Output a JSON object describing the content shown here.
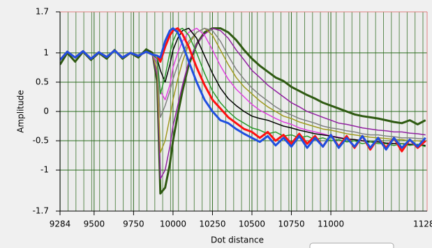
{
  "chart_data": {
    "type": "line",
    "x_label": "Dot distance",
    "y_label": "Amplitude",
    "x_max_label": "1128",
    "xlim": [
      9284,
      11610
    ],
    "xticks": [
      9284,
      9500,
      9750,
      10000,
      10250,
      10500,
      10750,
      11000
    ],
    "ylim": [
      -1.7,
      1.7
    ],
    "yticks": [
      -1.7,
      -1,
      -0.5,
      0,
      0.5,
      1,
      1.7
    ],
    "grid": true,
    "x": [
      9284,
      9330,
      9380,
      9430,
      9480,
      9530,
      9580,
      9630,
      9680,
      9730,
      9780,
      9830,
      9870,
      9900,
      9920,
      9950,
      9980,
      10000,
      10030,
      10060,
      10100,
      10150,
      10200,
      10250,
      10300,
      10350,
      10400,
      10450,
      10500,
      10550,
      10600,
      10650,
      10700,
      10750,
      10800,
      10850,
      10900,
      10950,
      11000,
      11050,
      11100,
      11150,
      11200,
      11250,
      11300,
      11350,
      11400,
      11450,
      11500,
      11550,
      11600
    ],
    "series": [
      {
        "color": "#2f5a12",
        "width": 3,
        "values": [
          0.8,
          1.0,
          0.85,
          1.02,
          0.88,
          1.0,
          0.9,
          1.05,
          0.9,
          1.0,
          0.92,
          1.06,
          1.0,
          0.5,
          -1.4,
          -1.3,
          -0.9,
          -0.5,
          -0.05,
          0.35,
          0.8,
          1.15,
          1.35,
          1.42,
          1.42,
          1.35,
          1.22,
          1.05,
          0.9,
          0.78,
          0.68,
          0.58,
          0.52,
          0.42,
          0.35,
          0.28,
          0.22,
          0.15,
          0.1,
          0.05,
          0.0,
          -0.05,
          -0.08,
          -0.1,
          -0.12,
          -0.15,
          -0.18,
          -0.2,
          -0.15,
          -0.22,
          -0.15
        ]
      },
      {
        "color": "#9020a0",
        "width": 1.5,
        "values": [
          0.88,
          1.02,
          0.92,
          1.03,
          0.9,
          1.01,
          0.93,
          1.04,
          0.92,
          1.0,
          0.95,
          1.02,
          0.97,
          0.6,
          -1.15,
          -1.0,
          -0.6,
          -0.25,
          0.1,
          0.45,
          0.85,
          1.15,
          1.32,
          1.42,
          1.38,
          1.25,
          1.05,
          0.88,
          0.7,
          0.58,
          0.45,
          0.35,
          0.25,
          0.15,
          0.08,
          0.0,
          -0.05,
          -0.1,
          -0.15,
          -0.2,
          -0.22,
          -0.25,
          -0.28,
          -0.3,
          -0.32,
          -0.33,
          -0.35,
          -0.35,
          -0.37,
          -0.38,
          -0.4
        ]
      },
      {
        "color": "#a09a20",
        "width": 1.5,
        "values": [
          0.88,
          1.02,
          0.92,
          1.03,
          0.9,
          1.01,
          0.93,
          1.04,
          0.92,
          1.0,
          0.95,
          1.02,
          0.97,
          0.7,
          -0.7,
          -0.5,
          -0.1,
          0.2,
          0.55,
          0.85,
          1.15,
          1.35,
          1.42,
          1.3,
          1.05,
          0.8,
          0.58,
          0.42,
          0.3,
          0.18,
          0.08,
          0.0,
          -0.08,
          -0.12,
          -0.18,
          -0.22,
          -0.26,
          -0.3,
          -0.32,
          -0.35,
          -0.38,
          -0.4,
          -0.42,
          -0.44,
          -0.45,
          -0.46,
          -0.48,
          -0.48,
          -0.5,
          -0.5,
          -0.52
        ]
      },
      {
        "color": "#808080",
        "width": 1.5,
        "values": [
          0.88,
          1.02,
          0.92,
          1.03,
          0.9,
          1.01,
          0.93,
          1.04,
          0.92,
          1.0,
          0.95,
          1.02,
          0.97,
          0.8,
          -0.1,
          0.1,
          0.35,
          0.55,
          0.8,
          1.0,
          1.2,
          1.35,
          1.42,
          1.38,
          1.2,
          0.95,
          0.72,
          0.55,
          0.4,
          0.28,
          0.18,
          0.08,
          0.0,
          -0.06,
          -0.12,
          -0.16,
          -0.2,
          -0.25,
          -0.28,
          -0.3,
          -0.33,
          -0.35,
          -0.38,
          -0.4,
          -0.4,
          -0.42,
          -0.43,
          -0.45,
          -0.45,
          -0.46,
          -0.47
        ]
      },
      {
        "color": "#e040e0",
        "width": 1.5,
        "values": [
          0.88,
          1.02,
          0.92,
          1.03,
          0.9,
          1.01,
          0.93,
          1.04,
          0.92,
          1.0,
          0.95,
          1.02,
          0.97,
          0.85,
          0.35,
          0.2,
          0.45,
          0.75,
          1.0,
          1.2,
          1.35,
          1.42,
          1.3,
          1.05,
          0.78,
          0.55,
          0.38,
          0.25,
          0.12,
          0.02,
          -0.05,
          -0.12,
          -0.18,
          -0.22,
          -0.28,
          -0.32,
          -0.35,
          -0.38,
          -0.42,
          -0.44,
          -0.47,
          -0.48,
          -0.5,
          -0.52,
          -0.52,
          -0.54,
          -0.55,
          -0.55,
          -0.56,
          -0.56,
          -0.58
        ]
      },
      {
        "color": "#000000",
        "width": 1.5,
        "values": [
          0.88,
          1.02,
          0.92,
          1.03,
          0.9,
          1.01,
          0.93,
          1.04,
          0.92,
          1.0,
          0.95,
          1.02,
          0.97,
          0.9,
          0.7,
          0.5,
          0.8,
          1.05,
          1.25,
          1.38,
          1.42,
          1.25,
          0.95,
          0.65,
          0.4,
          0.22,
          0.1,
          0.0,
          -0.08,
          -0.12,
          -0.15,
          -0.2,
          -0.25,
          -0.28,
          -0.32,
          -0.35,
          -0.38,
          -0.4,
          -0.42,
          -0.45,
          -0.47,
          -0.48,
          -0.5,
          -0.52,
          -0.52,
          -0.54,
          -0.55,
          -0.55,
          -0.56,
          -0.57,
          -0.58
        ]
      },
      {
        "color": "#2a9a2a",
        "width": 1.5,
        "values": [
          0.88,
          1.02,
          0.92,
          1.03,
          0.9,
          1.01,
          0.93,
          1.04,
          0.92,
          1.0,
          0.95,
          1.02,
          0.97,
          0.9,
          0.3,
          0.6,
          1.0,
          1.2,
          1.38,
          1.42,
          1.3,
          1.0,
          0.65,
          0.35,
          0.15,
          0.0,
          -0.12,
          -0.2,
          -0.28,
          -0.32,
          -0.38,
          -0.35,
          -0.42,
          -0.4,
          -0.45,
          -0.42,
          -0.48,
          -0.45,
          -0.5,
          -0.48,
          -0.52,
          -0.5,
          -0.55,
          -0.52,
          -0.55,
          -0.55,
          -0.58,
          -0.55,
          -0.58,
          -0.56,
          -0.6
        ]
      },
      {
        "color": "#ff1010",
        "width": 3,
        "values": [
          0.88,
          1.02,
          0.92,
          1.03,
          0.9,
          1.01,
          0.93,
          1.04,
          0.92,
          1.0,
          0.95,
          1.02,
          0.97,
          0.95,
          0.85,
          1.1,
          1.3,
          1.38,
          1.42,
          1.32,
          1.1,
          0.75,
          0.45,
          0.2,
          0.05,
          -0.1,
          -0.2,
          -0.3,
          -0.35,
          -0.45,
          -0.35,
          -0.5,
          -0.4,
          -0.55,
          -0.38,
          -0.55,
          -0.42,
          -0.6,
          -0.4,
          -0.6,
          -0.42,
          -0.62,
          -0.42,
          -0.65,
          -0.45,
          -0.62,
          -0.45,
          -0.68,
          -0.48,
          -0.62,
          -0.5
        ]
      },
      {
        "color": "#1f4fe0",
        "width": 3,
        "values": [
          0.88,
          1.02,
          0.92,
          1.03,
          0.9,
          1.01,
          0.93,
          1.04,
          0.92,
          1.0,
          0.95,
          1.02,
          0.97,
          0.95,
          0.92,
          1.2,
          1.38,
          1.42,
          1.35,
          1.15,
          0.85,
          0.5,
          0.2,
          0.0,
          -0.15,
          -0.2,
          -0.3,
          -0.38,
          -0.45,
          -0.52,
          -0.42,
          -0.58,
          -0.45,
          -0.6,
          -0.42,
          -0.62,
          -0.45,
          -0.6,
          -0.4,
          -0.62,
          -0.45,
          -0.6,
          -0.42,
          -0.62,
          -0.45,
          -0.65,
          -0.45,
          -0.62,
          -0.48,
          -0.6,
          -0.45
        ]
      }
    ]
  }
}
